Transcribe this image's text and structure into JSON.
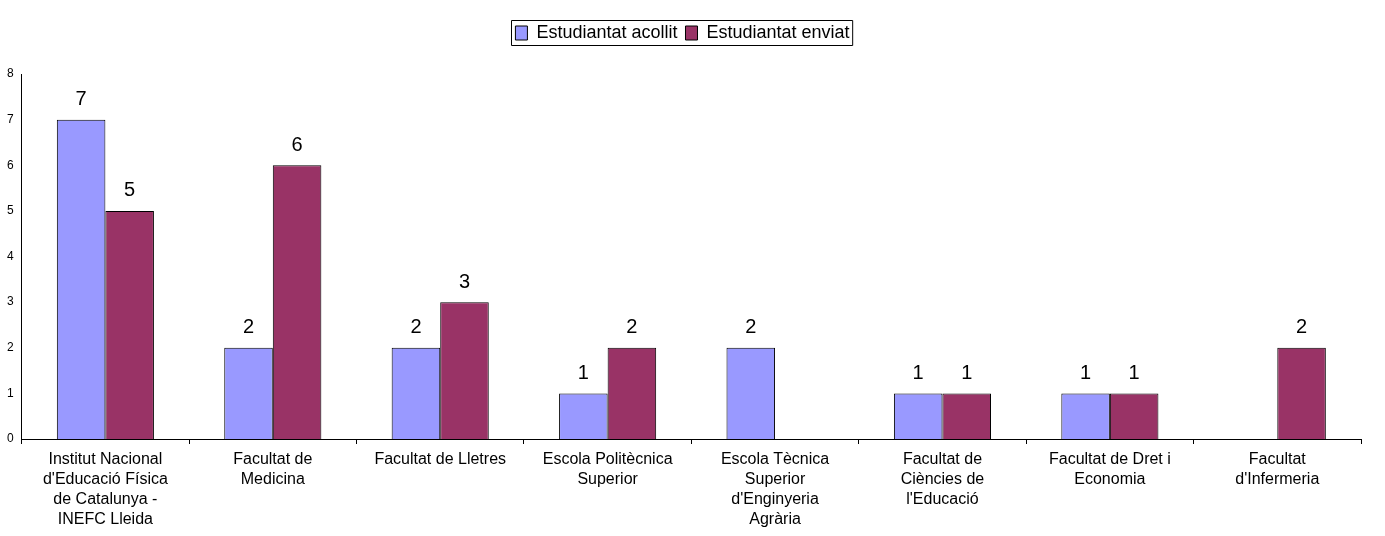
{
  "chart_data": {
    "type": "bar",
    "categories": [
      "Institut Nacional d'Educació Física de Catalunya - INEFC Lleida",
      "Facultat de Medicina",
      "Facultat de Lletres",
      "Escola Politècnica Superior",
      "Escola Tècnica Superior d'Enginyeria Agrària",
      "Facultat de Ciències de l'Educació",
      "Facultat de Dret i Economia",
      "Facultat d'Infermeria"
    ],
    "series": [
      {
        "name": "Estudiantat acollit",
        "color": "#9999ff",
        "values": [
          7,
          2,
          2,
          1,
          2,
          1,
          1,
          null
        ]
      },
      {
        "name": "Estudiantat enviat",
        "color": "#993366",
        "values": [
          5,
          6,
          3,
          2,
          null,
          1,
          1,
          2
        ]
      }
    ],
    "ylim": [
      0,
      8
    ],
    "yticks": [
      0,
      1,
      2,
      3,
      4,
      5,
      6,
      7,
      8
    ],
    "grid": false,
    "legend": "top",
    "data_labels": true
  }
}
